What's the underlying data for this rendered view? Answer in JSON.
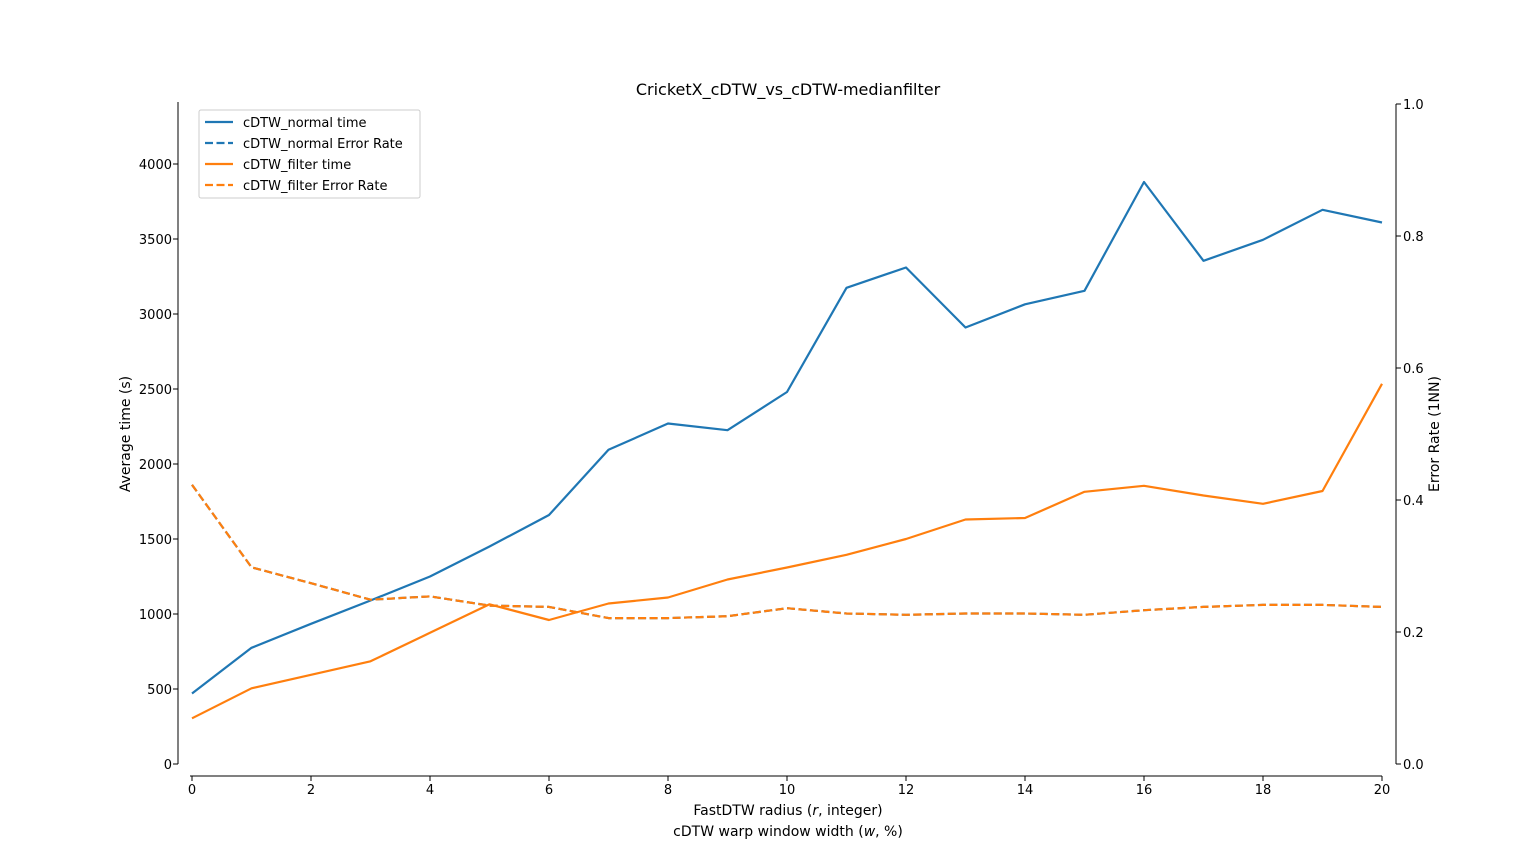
{
  "chart_data": {
    "type": "line",
    "title": "CricketX_cDTW_vs_cDTW-medianfilter",
    "xlabel": "FastDTW radius (r, integer)",
    "xlabel_parts": [
      "FastDTW radius (",
      "r",
      ", integer)"
    ],
    "xlabel2": "cDTW warp window width (w, %)",
    "xlabel2_parts": [
      "cDTW warp window width (",
      "w",
      ", %)"
    ],
    "ylabel": "Average time (s)",
    "y2label": "Error Rate (1NN)",
    "xlim": [
      0,
      20
    ],
    "ylim": [
      0,
      4400
    ],
    "y2lim": [
      0,
      1.0
    ],
    "xticks": [
      0,
      2,
      4,
      6,
      8,
      10,
      12,
      14,
      16,
      18,
      20
    ],
    "yticks": [
      0,
      500,
      1000,
      1500,
      2000,
      2500,
      3000,
      3500,
      4000
    ],
    "y2ticks": [
      0.0,
      0.2,
      0.4,
      0.6,
      0.8,
      1.0
    ],
    "y2tick_labels": [
      "0.0",
      "0.2",
      "0.4",
      "0.6",
      "0.8",
      "1.0"
    ],
    "grid": false,
    "legend_position": "top-left",
    "x": [
      0,
      1,
      2,
      3,
      4,
      5,
      6,
      7,
      8,
      9,
      10,
      11,
      12,
      13,
      14,
      15,
      16,
      17,
      18,
      19,
      20
    ],
    "series": [
      {
        "name": "cDTW_normal time",
        "axis": "left",
        "style": "solid",
        "color": "#1f77b4",
        "values": [
          470,
          775,
          935,
          1090,
          1250,
          1450,
          1660,
          2095,
          2270,
          2225,
          2480,
          3175,
          3310,
          2910,
          3065,
          3155,
          3880,
          3355,
          3495,
          3695,
          3610
        ]
      },
      {
        "name": "cDTW_normal Error Rate",
        "axis": "right",
        "style": "dashed",
        "color": "#1f77b4",
        "values": [
          0.423,
          0.298,
          0.274,
          0.249,
          0.254,
          0.24,
          0.238,
          0.221,
          0.221,
          0.224,
          0.236,
          0.228,
          0.226,
          0.228,
          0.228,
          0.226,
          0.233,
          0.238,
          0.241,
          0.241,
          0.238
        ]
      },
      {
        "name": "cDTW_filter time",
        "axis": "left",
        "style": "solid",
        "color": "#ff7f0e",
        "values": [
          305,
          505,
          595,
          685,
          875,
          1065,
          960,
          1070,
          1110,
          1230,
          1310,
          1395,
          1500,
          1630,
          1640,
          1815,
          1855,
          1790,
          1735,
          1820,
          2535
        ]
      },
      {
        "name": "cDTW_filter Error Rate",
        "axis": "right",
        "style": "dashed",
        "color": "#ff7f0e",
        "values": [
          0.423,
          0.298,
          0.274,
          0.249,
          0.254,
          0.24,
          0.238,
          0.221,
          0.221,
          0.224,
          0.236,
          0.228,
          0.226,
          0.228,
          0.228,
          0.226,
          0.233,
          0.238,
          0.241,
          0.241,
          0.238
        ]
      }
    ]
  }
}
